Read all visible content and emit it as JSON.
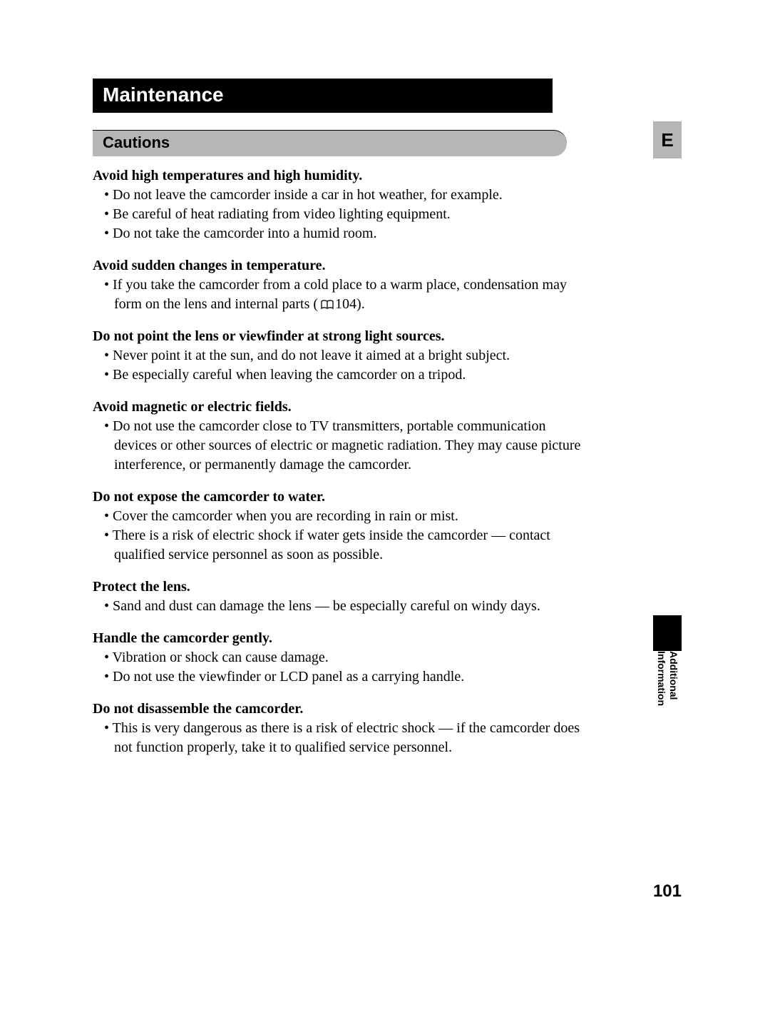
{
  "colors": {
    "banner_bg": "#000000",
    "banner_text": "#ffffff",
    "section_bg": "#b6b6b6",
    "tab_bg": "#b6b6b6",
    "page_bg": "#ffffff",
    "text": "#000000"
  },
  "typography": {
    "banner_font": "Arial",
    "banner_size_pt": 21,
    "section_size_pt": 17,
    "body_font": "Times New Roman",
    "body_size_pt": 15
  },
  "banner": {
    "title": "Maintenance"
  },
  "section": {
    "title": "Cautions"
  },
  "lang_tab": "E",
  "blocks": [
    {
      "heading": "Avoid high temperatures and high humidity.",
      "items": [
        {
          "text": "Do not leave the camcorder inside a car in hot weather, for example."
        },
        {
          "text": "Be careful of heat radiating from video lighting equipment."
        },
        {
          "text": "Do not take the camcorder into a humid room."
        }
      ]
    },
    {
      "heading": "Avoid sudden changes in temperature.",
      "items": [
        {
          "text_before": "If you take the camcorder from a cold place to a warm place, condensation may form on the lens and internal parts (",
          "page_ref": "104",
          "text_after": ")."
        }
      ]
    },
    {
      "heading": "Do not point the lens or viewfinder at strong light sources.",
      "items": [
        {
          "text": "Never point it at the sun, and do not leave it aimed at a bright subject."
        },
        {
          "text": "Be especially careful when leaving the camcorder on a tripod."
        }
      ]
    },
    {
      "heading": "Avoid magnetic or electric fields.",
      "items": [
        {
          "text": "Do not use the camcorder close to TV transmitters, portable communication devices or other sources of electric or magnetic radiation. They may cause picture interference, or permanently damage the camcorder."
        }
      ]
    },
    {
      "heading": "Do not expose the camcorder to water.",
      "items": [
        {
          "text": "Cover the camcorder when you are recording in rain or mist."
        },
        {
          "text": "There is a risk of electric shock if water gets inside the camcorder — contact qualified service personnel as soon as possible."
        }
      ]
    },
    {
      "heading": "Protect the lens.",
      "items": [
        {
          "text": "Sand and dust can damage the lens — be especially careful on windy days."
        }
      ]
    },
    {
      "heading": "Handle the camcorder gently.",
      "items": [
        {
          "text": "Vibration or shock can cause damage."
        },
        {
          "text": "Do not use the viewfinder or LCD panel as a carrying handle."
        }
      ]
    },
    {
      "heading": "Do not disassemble the camcorder.",
      "items": [
        {
          "text": "This is very dangerous as there is a risk of electric shock — if the camcorder does not function properly, take it to qualified service personnel."
        }
      ]
    }
  ],
  "side_label": {
    "line1": "Additional",
    "line2": "Information"
  },
  "page_number": "101"
}
